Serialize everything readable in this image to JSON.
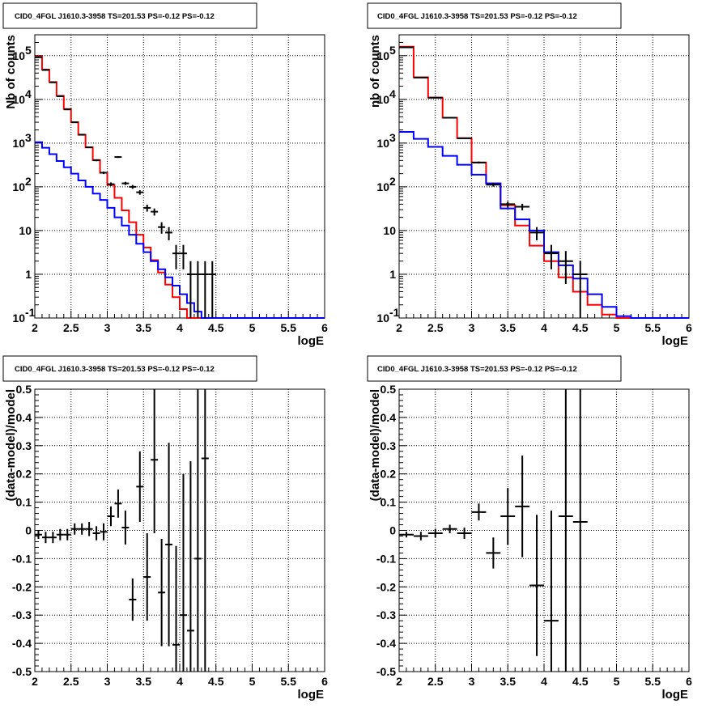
{
  "chart_data": [
    {
      "type": "line",
      "title": "CID0_4FGL J1610.3-3958 TS=201.53 PS=-0.12 PS=-0.12",
      "xlabel": "logE",
      "ylabel": "Nb of counts",
      "log_y": true,
      "xlim": [
        2,
        6
      ],
      "ylim": [
        0.1,
        300000
      ],
      "xticks": [
        "2",
        "2.5",
        "3",
        "3.5",
        "4",
        "4.5",
        "5",
        "5.5",
        "6"
      ],
      "yticks": [
        {
          "value": 0.1,
          "base": "10",
          "exp": "-1"
        },
        {
          "value": 1,
          "base": "1",
          "exp": ""
        },
        {
          "value": 10,
          "base": "10",
          "exp": ""
        },
        {
          "value": 100,
          "base": "10",
          "exp": "2"
        },
        {
          "value": 1000,
          "base": "10",
          "exp": "3"
        },
        {
          "value": 10000,
          "base": "10",
          "exp": "4"
        },
        {
          "value": 100000,
          "base": "10",
          "exp": "5"
        }
      ],
      "grid": true,
      "bin_edges": [
        2.0,
        2.1,
        2.2,
        2.3,
        2.4,
        2.5,
        2.6,
        2.7,
        2.8,
        2.9,
        3.0,
        3.1,
        3.2,
        3.3,
        3.4,
        3.5,
        3.6,
        3.7,
        3.8,
        3.9,
        4.0,
        4.1,
        4.2,
        4.3,
        4.4,
        4.5,
        4.6,
        4.7,
        4.8,
        4.9,
        5.0,
        5.1,
        5.2,
        5.3,
        5.4,
        5.5,
        5.6,
        5.7,
        5.8,
        5.9,
        6.0
      ],
      "series": [
        {
          "color": "#ff0000",
          "values": [
            95000,
            48000,
            25000,
            12000,
            6000,
            3000,
            1550,
            800,
            410,
            210,
            110,
            56,
            29,
            15.5,
            8,
            4.1,
            2.1,
            1.1,
            0.58,
            0.3,
            0.16,
            0.1,
            0.1,
            0.1,
            0.1,
            0.1,
            0.1,
            0.1,
            0.1,
            0.1,
            0.1,
            0.1,
            0.1,
            0.1,
            0.1,
            0.1,
            0.1,
            0.1,
            0.1,
            0.1
          ]
        },
        {
          "color": "#0000ff",
          "values": [
            1050,
            780,
            560,
            390,
            280,
            200,
            140,
            100,
            70,
            50,
            33,
            20,
            13,
            8,
            5,
            3.2,
            2,
            1.3,
            0.85,
            0.55,
            0.35,
            0.22,
            0.14,
            0.1,
            0.1,
            0.1,
            0.1,
            0.1,
            0.1,
            0.1,
            0.1,
            0.1,
            0.1,
            0.1,
            0.1,
            0.1,
            0.1,
            0.1,
            0.1,
            0.1
          ]
        }
      ],
      "data_points": [
        {
          "x": 2.05,
          "y": 92000,
          "ylo": 91500,
          "yhi": 92500
        },
        {
          "x": 2.15,
          "y": 47000,
          "ylo": 46700,
          "yhi": 47300
        },
        {
          "x": 2.25,
          "y": 24500,
          "ylo": 24300,
          "yhi": 24700
        },
        {
          "x": 2.35,
          "y": 11800,
          "ylo": 11700,
          "yhi": 11900
        },
        {
          "x": 2.45,
          "y": 5900,
          "ylo": 5830,
          "yhi": 5970
        },
        {
          "x": 2.55,
          "y": 3000,
          "ylo": 2950,
          "yhi": 3050
        },
        {
          "x": 2.65,
          "y": 1560,
          "ylo": 1520,
          "yhi": 1600
        },
        {
          "x": 2.75,
          "y": 800,
          "ylo": 772,
          "yhi": 828
        },
        {
          "x": 2.85,
          "y": 405,
          "ylo": 385,
          "yhi": 425
        },
        {
          "x": 2.95,
          "y": 210,
          "ylo": 196,
          "yhi": 224
        },
        {
          "x": 3.05,
          "y": 115,
          "ylo": 104,
          "yhi": 126
        },
        {
          "x": 3.15,
          "y": 480,
          "ylo": 458,
          "yhi": 502
        },
        {
          "x": 3.25,
          "y": 120,
          "ylo": 110,
          "yhi": 130
        },
        {
          "x": 3.35,
          "y": 100,
          "ylo": 90,
          "yhi": 110
        },
        {
          "x": 3.45,
          "y": 75,
          "ylo": 66,
          "yhi": 84
        },
        {
          "x": 3.55,
          "y": 33,
          "ylo": 27,
          "yhi": 39
        },
        {
          "x": 3.65,
          "y": 27,
          "ylo": 22,
          "yhi": 32
        },
        {
          "x": 3.75,
          "y": 12,
          "ylo": 8.5,
          "yhi": 15.5
        },
        {
          "x": 3.85,
          "y": 9,
          "ylo": 6,
          "yhi": 12
        },
        {
          "x": 3.95,
          "y": 3,
          "ylo": 1.3,
          "yhi": 4.7
        },
        {
          "x": 4.05,
          "y": 3,
          "ylo": 1.3,
          "yhi": 4.7
        },
        {
          "x": 4.15,
          "y": 1,
          "ylo": 0.1,
          "yhi": 2
        },
        {
          "x": 4.25,
          "y": 1,
          "ylo": 0.1,
          "yhi": 2
        },
        {
          "x": 4.35,
          "y": 1,
          "ylo": 0.1,
          "yhi": 2
        },
        {
          "x": 4.45,
          "y": 1,
          "ylo": 0.1,
          "yhi": 2
        }
      ]
    },
    {
      "type": "line",
      "title": "CID0_4FGL J1610.3-3958 TS=201.53 PS=-0.12 PS=-0.12",
      "xlabel": "logE",
      "ylabel": "nb of counts",
      "log_y": true,
      "xlim": [
        2,
        6
      ],
      "ylim": [
        0.1,
        300000
      ],
      "xticks": [
        "2",
        "2.5",
        "3",
        "3.5",
        "4",
        "4.5",
        "5",
        "5.5",
        "6"
      ],
      "yticks": [
        {
          "value": 0.1,
          "base": "10",
          "exp": "-1"
        },
        {
          "value": 1,
          "base": "1",
          "exp": ""
        },
        {
          "value": 10,
          "base": "10",
          "exp": ""
        },
        {
          "value": 100,
          "base": "10",
          "exp": "2"
        },
        {
          "value": 1000,
          "base": "10",
          "exp": "3"
        },
        {
          "value": 10000,
          "base": "10",
          "exp": "4"
        },
        {
          "value": 100000,
          "base": "10",
          "exp": "5"
        }
      ],
      "grid": true,
      "bin_edges": [
        2.0,
        2.2,
        2.4,
        2.6,
        2.8,
        3.0,
        3.2,
        3.4,
        3.6,
        3.8,
        4.0,
        4.2,
        4.4,
        4.6,
        4.8,
        5.0,
        5.2,
        5.4,
        5.6,
        5.8,
        6.0
      ],
      "series": [
        {
          "color": "#ff0000",
          "values": [
            160000,
            32000,
            11000,
            3800,
            1300,
            360,
            120,
            38,
            13,
            4.5,
            2,
            0.85,
            0.4,
            0.2,
            0.12,
            0.1,
            0.1,
            0.1,
            0.1,
            0.1
          ]
        },
        {
          "color": "#0000ff",
          "values": [
            1800,
            1250,
            820,
            510,
            320,
            190,
            120,
            32,
            18,
            10,
            3.2,
            1.6,
            0.8,
            0.35,
            0.18,
            0.11,
            0.1,
            0.1,
            0.1,
            0.1
          ]
        }
      ],
      "data_points": [
        {
          "x": 2.1,
          "y": 155000,
          "ylo": 154300,
          "yhi": 155700
        },
        {
          "x": 2.3,
          "y": 31500,
          "ylo": 31300,
          "yhi": 31700
        },
        {
          "x": 2.5,
          "y": 10900,
          "ylo": 10790,
          "yhi": 11010
        },
        {
          "x": 2.7,
          "y": 3800,
          "ylo": 3740,
          "yhi": 3860
        },
        {
          "x": 2.9,
          "y": 1290,
          "ylo": 1254,
          "yhi": 1326
        },
        {
          "x": 3.1,
          "y": 360,
          "ylo": 341,
          "yhi": 379
        },
        {
          "x": 3.3,
          "y": 112,
          "ylo": 101,
          "yhi": 123
        },
        {
          "x": 3.5,
          "y": 40,
          "ylo": 33.7,
          "yhi": 46.3
        },
        {
          "x": 3.7,
          "y": 35,
          "ylo": 29,
          "yhi": 41
        },
        {
          "x": 3.9,
          "y": 9,
          "ylo": 6,
          "yhi": 12
        },
        {
          "x": 4.1,
          "y": 3,
          "ylo": 1.3,
          "yhi": 4.7
        },
        {
          "x": 4.3,
          "y": 2,
          "ylo": 0.6,
          "yhi": 3.4
        },
        {
          "x": 4.5,
          "y": 1,
          "ylo": 0.1,
          "yhi": 2
        }
      ]
    },
    {
      "type": "scatter",
      "title": "CID0_4FGL J1610.3-3958 TS=201.53 PS=-0.12 PS=-0.12",
      "xlabel": "logE",
      "ylabel": "(data-model)/model",
      "log_y": false,
      "xlim": [
        2,
        6
      ],
      "ylim": [
        -0.5,
        0.5
      ],
      "xticks": [
        "2",
        "2.5",
        "3",
        "3.5",
        "4",
        "4.5",
        "5",
        "5.5",
        "6"
      ],
      "yticks": [
        "-0.5",
        "-0.4",
        "-0.3",
        "-0.2",
        "-0.1",
        "0",
        "0.1",
        "0.2",
        "0.3",
        "0.4",
        "0.5"
      ],
      "grid": true,
      "x_half_width": 0.05,
      "data_points": [
        {
          "x": 2.05,
          "y": -0.015,
          "err": 0.015
        },
        {
          "x": 2.15,
          "y": -0.025,
          "err": 0.02
        },
        {
          "x": 2.25,
          "y": -0.025,
          "err": 0.02
        },
        {
          "x": 2.35,
          "y": -0.015,
          "err": 0.02
        },
        {
          "x": 2.45,
          "y": -0.015,
          "err": 0.02
        },
        {
          "x": 2.55,
          "y": 0.005,
          "err": 0.02
        },
        {
          "x": 2.65,
          "y": 0.005,
          "err": 0.02
        },
        {
          "x": 2.75,
          "y": 0.005,
          "err": 0.025
        },
        {
          "x": 2.85,
          "y": -0.01,
          "err": 0.025
        },
        {
          "x": 2.95,
          "y": -0.005,
          "err": 0.03
        },
        {
          "x": 3.05,
          "y": 0.05,
          "err": 0.035
        },
        {
          "x": 3.15,
          "y": 0.095,
          "err": 0.05
        },
        {
          "x": 3.25,
          "y": 0.01,
          "err": 0.06
        },
        {
          "x": 3.35,
          "y": -0.245,
          "err": 0.075
        },
        {
          "x": 3.45,
          "y": 0.155,
          "err": 0.125
        },
        {
          "x": 3.55,
          "y": -0.165,
          "err": 0.155
        },
        {
          "x": 3.65,
          "y": 0.25,
          "err": 0.26
        },
        {
          "x": 3.75,
          "y": -0.22,
          "err": 0.19
        },
        {
          "x": 3.85,
          "y": -0.05,
          "err": 0.36
        },
        {
          "x": 3.95,
          "y": -0.405,
          "err": 0.35
        },
        {
          "x": 4.05,
          "y": -0.3,
          "err": 0.5
        },
        {
          "x": 4.15,
          "y": -0.355,
          "err": 0.6
        },
        {
          "x": 4.25,
          "y": -0.1,
          "err": 0.8
        },
        {
          "x": 4.35,
          "y": 0.255,
          "err": 0.8
        }
      ]
    },
    {
      "type": "scatter",
      "title": "CID0_4FGL J1610.3-3958 TS=201.53 PS=-0.12 PS=-0.12",
      "xlabel": "logE",
      "ylabel": "(data-model)/model",
      "log_y": false,
      "xlim": [
        2,
        6
      ],
      "ylim": [
        -0.5,
        0.5
      ],
      "xticks": [
        "2",
        "2.5",
        "3",
        "3.5",
        "4",
        "4.5",
        "5",
        "5.5",
        "6"
      ],
      "yticks": [
        "-0.5",
        "-0.4",
        "-0.3",
        "-0.2",
        "-0.1",
        "0",
        "0.1",
        "0.2",
        "0.3",
        "0.4",
        "0.5"
      ],
      "grid": true,
      "x_half_width": 0.1,
      "data_points": [
        {
          "x": 2.1,
          "y": -0.015,
          "err": 0.01
        },
        {
          "x": 2.3,
          "y": -0.02,
          "err": 0.015
        },
        {
          "x": 2.5,
          "y": -0.01,
          "err": 0.015
        },
        {
          "x": 2.7,
          "y": 0.005,
          "err": 0.015
        },
        {
          "x": 2.9,
          "y": -0.01,
          "err": 0.02
        },
        {
          "x": 3.1,
          "y": 0.065,
          "err": 0.03
        },
        {
          "x": 3.3,
          "y": -0.08,
          "err": 0.055
        },
        {
          "x": 3.5,
          "y": 0.05,
          "err": 0.1
        },
        {
          "x": 3.7,
          "y": 0.085,
          "err": 0.18
        },
        {
          "x": 3.9,
          "y": -0.195,
          "err": 0.25
        },
        {
          "x": 4.1,
          "y": -0.32,
          "err": 0.39
        },
        {
          "x": 4.3,
          "y": 0.05,
          "err": 0.6
        },
        {
          "x": 4.5,
          "y": 0.03,
          "err": 0.8
        }
      ]
    }
  ]
}
